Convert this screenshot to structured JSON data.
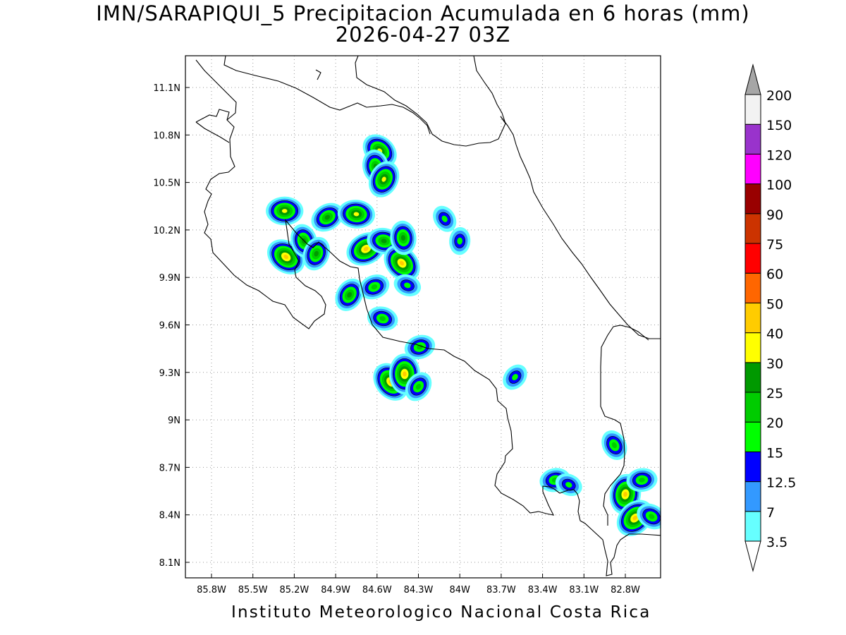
{
  "header": {
    "title_line1": "IMN/SARAPIQUI_5 Precipitacion Acumulada en 6 horas (mm)",
    "title_line2": "2026-04-27 03Z"
  },
  "footer": {
    "credit": "Instituto Meteorologico Nacional Costa Rica"
  },
  "map": {
    "lon_range": [
      -86.0,
      -82.5
    ],
    "lat_range": [
      8.0,
      11.3
    ],
    "lon_ticks": [
      {
        "value": -85.8,
        "label": "85.8W"
      },
      {
        "value": -85.5,
        "label": "85.5W"
      },
      {
        "value": -85.2,
        "label": "85.2W"
      },
      {
        "value": -84.9,
        "label": "84.9W"
      },
      {
        "value": -84.6,
        "label": "84.6W"
      },
      {
        "value": -84.3,
        "label": "84.3W"
      },
      {
        "value": -84.0,
        "label": "84W"
      },
      {
        "value": -83.7,
        "label": "83.7W"
      },
      {
        "value": -83.4,
        "label": "83.4W"
      },
      {
        "value": -83.1,
        "label": "83.1W"
      },
      {
        "value": -82.8,
        "label": "82.8W"
      }
    ],
    "lat_ticks": [
      {
        "value": 8.1,
        "label": "8.1N"
      },
      {
        "value": 8.4,
        "label": "8.4N"
      },
      {
        "value": 8.7,
        "label": "8.7N"
      },
      {
        "value": 9.0,
        "label": "9N"
      },
      {
        "value": 9.3,
        "label": "9.3N"
      },
      {
        "value": 9.6,
        "label": "9.6N"
      },
      {
        "value": 9.9,
        "label": "9.9N"
      },
      {
        "value": 10.2,
        "label": "10.2N"
      },
      {
        "value": 10.5,
        "label": "10.5N"
      },
      {
        "value": 10.8,
        "label": "10.8N"
      },
      {
        "value": 11.1,
        "label": "11.1N"
      }
    ],
    "gridlines": "dotted",
    "precip_cells": [
      {
        "lon": -85.27,
        "lat": 10.32,
        "peak": 30
      },
      {
        "lon": -85.26,
        "lat": 10.03,
        "peak": 40
      },
      {
        "lon": -85.13,
        "lat": 10.13,
        "peak": 25
      },
      {
        "lon": -85.04,
        "lat": 10.05,
        "peak": 25
      },
      {
        "lon": -84.96,
        "lat": 10.28,
        "peak": 25
      },
      {
        "lon": -84.75,
        "lat": 10.3,
        "peak": 30
      },
      {
        "lon": -84.58,
        "lat": 10.7,
        "peak": 30
      },
      {
        "lon": -84.61,
        "lat": 10.6,
        "peak": 25
      },
      {
        "lon": -84.55,
        "lat": 10.52,
        "peak": 30
      },
      {
        "lon": -84.68,
        "lat": 10.08,
        "peak": 40
      },
      {
        "lon": -84.55,
        "lat": 10.13,
        "peak": 25
      },
      {
        "lon": -84.42,
        "lat": 9.99,
        "peak": 40
      },
      {
        "lon": -84.41,
        "lat": 10.15,
        "peak": 25
      },
      {
        "lon": -84.8,
        "lat": 9.79,
        "peak": 25
      },
      {
        "lon": -84.62,
        "lat": 9.84,
        "peak": 20
      },
      {
        "lon": -84.56,
        "lat": 9.64,
        "peak": 20
      },
      {
        "lon": -84.5,
        "lat": 9.24,
        "peak": 40
      },
      {
        "lon": -84.4,
        "lat": 9.29,
        "peak": 40
      },
      {
        "lon": -84.3,
        "lat": 9.21,
        "peak": 20
      },
      {
        "lon": -84.29,
        "lat": 9.46,
        "peak": 20
      },
      {
        "lon": -84.38,
        "lat": 9.85,
        "peak": 15
      },
      {
        "lon": -84.11,
        "lat": 10.27,
        "peak": 15
      },
      {
        "lon": -84.0,
        "lat": 10.13,
        "peak": 15
      },
      {
        "lon": -83.6,
        "lat": 9.27,
        "peak": 15
      },
      {
        "lon": -83.31,
        "lat": 8.62,
        "peak": 20
      },
      {
        "lon": -83.21,
        "lat": 8.59,
        "peak": 15
      },
      {
        "lon": -82.88,
        "lat": 8.84,
        "peak": 20
      },
      {
        "lon": -82.8,
        "lat": 8.53,
        "peak": 40
      },
      {
        "lon": -82.73,
        "lat": 8.38,
        "peak": 40
      },
      {
        "lon": -82.68,
        "lat": 8.62,
        "peak": 20
      },
      {
        "lon": -82.61,
        "lat": 8.39,
        "peak": 20
      }
    ]
  },
  "colorbar": {
    "levels": [
      {
        "label": "3.5",
        "color": "#66ffff"
      },
      {
        "label": "7",
        "color": "#3399ff"
      },
      {
        "label": "12.5",
        "color": "#0000ff"
      },
      {
        "label": "15",
        "color": "#00ff00"
      },
      {
        "label": "20",
        "color": "#00cc00"
      },
      {
        "label": "25",
        "color": "#009900"
      },
      {
        "label": "30",
        "color": "#ffff00"
      },
      {
        "label": "40",
        "color": "#ffcc00"
      },
      {
        "label": "50",
        "color": "#ff6600"
      },
      {
        "label": "60",
        "color": "#ff0000"
      },
      {
        "label": "75",
        "color": "#cc3300"
      },
      {
        "label": "90",
        "color": "#990000"
      },
      {
        "label": "100",
        "color": "#ff00ff"
      },
      {
        "label": "120",
        "color": "#9933cc"
      },
      {
        "label": "150",
        "color": "#f2f2f2"
      },
      {
        "label": "200",
        "color": "#a6a6a6"
      }
    ],
    "below_arrow_color": "#ffffff",
    "above_arrow_color": "#a6a6a6"
  }
}
